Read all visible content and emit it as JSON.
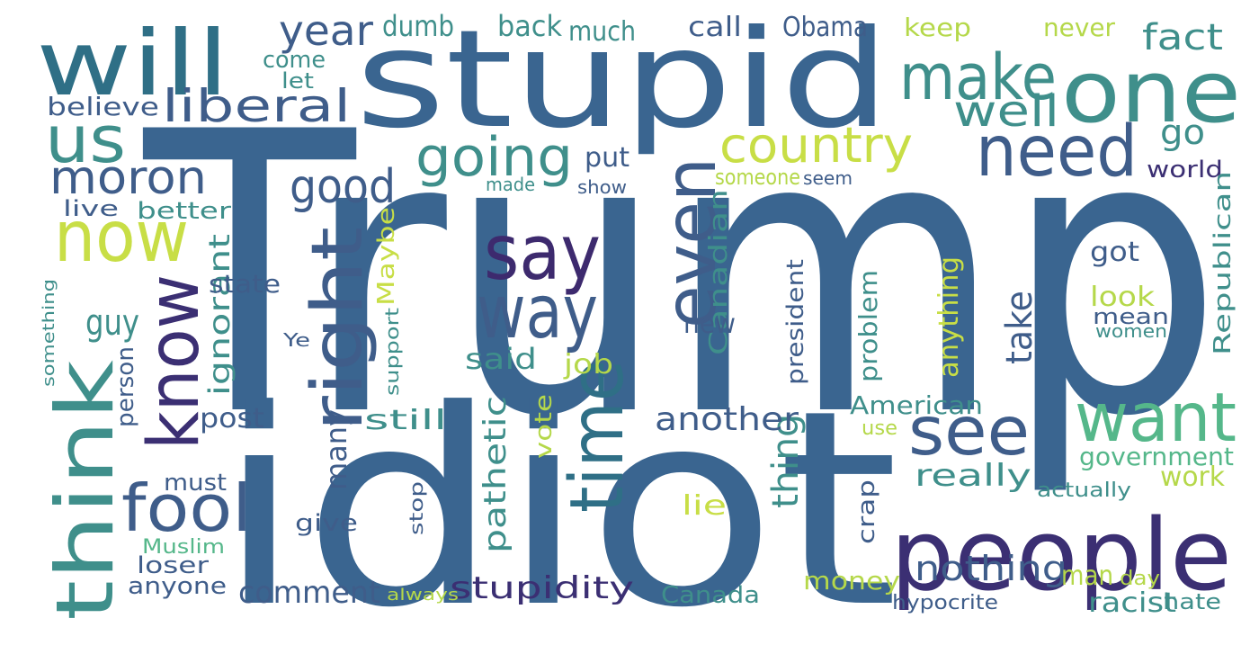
{
  "palette": {
    "blue": "#3a6590",
    "slate": "#3f5d8a",
    "navy": "#3b2f73",
    "purple": "#3d2a6e",
    "teal": "#3f8f8b",
    "tealdark": "#2f6f86",
    "green": "#55b78a",
    "lightgreen": "#79c57a",
    "lime": "#c8de46",
    "yellowgreen": "#b5d84a"
  },
  "words": [
    {
      "text": "Trump",
      "color": "blue"
    },
    {
      "text": "idiot",
      "color": "blue"
    },
    {
      "text": "stupid",
      "color": "blue"
    },
    {
      "text": "people",
      "color": "navy"
    },
    {
      "text": "will",
      "color": "tealdark"
    },
    {
      "text": "one",
      "color": "teal"
    },
    {
      "text": "make",
      "color": "teal"
    },
    {
      "text": "us",
      "color": "teal"
    },
    {
      "text": "need",
      "color": "slate"
    },
    {
      "text": "now",
      "color": "lime"
    },
    {
      "text": "think",
      "color": "teal"
    },
    {
      "text": "know",
      "color": "navy"
    },
    {
      "text": "right",
      "color": "slate"
    },
    {
      "text": "say",
      "color": "purple"
    },
    {
      "text": "way",
      "color": "slate"
    },
    {
      "text": "even",
      "color": "slate"
    },
    {
      "text": "time",
      "color": "tealdark"
    },
    {
      "text": "want",
      "color": "green"
    },
    {
      "text": "see",
      "color": "slate"
    },
    {
      "text": "fool",
      "color": "slate"
    },
    {
      "text": "country",
      "color": "lime"
    },
    {
      "text": "going",
      "color": "teal"
    },
    {
      "text": "good",
      "color": "slate"
    },
    {
      "text": "moron",
      "color": "slate"
    },
    {
      "text": "liberal",
      "color": "slate"
    },
    {
      "text": "well",
      "color": "teal"
    },
    {
      "text": "year",
      "color": "slate"
    },
    {
      "text": "fact",
      "color": "teal"
    },
    {
      "text": "go",
      "color": "teal"
    },
    {
      "text": "dumb",
      "color": "teal"
    },
    {
      "text": "back",
      "color": "teal"
    },
    {
      "text": "much",
      "color": "teal"
    },
    {
      "text": "call",
      "color": "slate"
    },
    {
      "text": "Obama",
      "color": "slate"
    },
    {
      "text": "keep",
      "color": "yellowgreen"
    },
    {
      "text": "never",
      "color": "yellowgreen"
    },
    {
      "text": "come",
      "color": "teal"
    },
    {
      "text": "let",
      "color": "teal"
    },
    {
      "text": "believe",
      "color": "slate"
    },
    {
      "text": "put",
      "color": "slate"
    },
    {
      "text": "someone",
      "color": "yellowgreen"
    },
    {
      "text": "seem",
      "color": "slate"
    },
    {
      "text": "world",
      "color": "navy"
    },
    {
      "text": "made",
      "color": "teal"
    },
    {
      "text": "show",
      "color": "slate"
    },
    {
      "text": "live",
      "color": "slate"
    },
    {
      "text": "better",
      "color": "teal"
    },
    {
      "text": "ignorant",
      "color": "teal"
    },
    {
      "text": "Maybe",
      "color": "lime"
    },
    {
      "text": "Canadian",
      "color": "teal"
    },
    {
      "text": "Republican",
      "color": "teal"
    },
    {
      "text": "state",
      "color": "slate"
    },
    {
      "text": "guy",
      "color": "teal"
    },
    {
      "text": "got",
      "color": "slate"
    },
    {
      "text": "look",
      "color": "yellowgreen"
    },
    {
      "text": "something",
      "color": "teal"
    },
    {
      "text": "Ye",
      "color": "slate"
    },
    {
      "text": "new",
      "color": "slate"
    },
    {
      "text": "president",
      "color": "slate"
    },
    {
      "text": "problem",
      "color": "teal"
    },
    {
      "text": "anything",
      "color": "lime"
    },
    {
      "text": "mean",
      "color": "slate"
    },
    {
      "text": "women",
      "color": "teal"
    },
    {
      "text": "person",
      "color": "slate"
    },
    {
      "text": "support",
      "color": "teal"
    },
    {
      "text": "said",
      "color": "teal"
    },
    {
      "text": "job",
      "color": "yellowgreen"
    },
    {
      "text": "take",
      "color": "slate"
    },
    {
      "text": "pathetic",
      "color": "teal"
    },
    {
      "text": "vote",
      "color": "yellowgreen"
    },
    {
      "text": "thing",
      "color": "teal"
    },
    {
      "text": "post",
      "color": "slate"
    },
    {
      "text": "still",
      "color": "teal"
    },
    {
      "text": "another",
      "color": "slate"
    },
    {
      "text": "American",
      "color": "teal"
    },
    {
      "text": "use",
      "color": "yellowgreen"
    },
    {
      "text": "government",
      "color": "green"
    },
    {
      "text": "many",
      "color": "slate"
    },
    {
      "text": "really",
      "color": "teal"
    },
    {
      "text": "work",
      "color": "yellowgreen"
    },
    {
      "text": "must",
      "color": "slate"
    },
    {
      "text": "stop",
      "color": "slate"
    },
    {
      "text": "actually",
      "color": "teal"
    },
    {
      "text": "give",
      "color": "slate"
    },
    {
      "text": "crap",
      "color": "slate"
    },
    {
      "text": "lie",
      "color": "lime"
    },
    {
      "text": "Muslim",
      "color": "green"
    },
    {
      "text": "loser",
      "color": "slate"
    },
    {
      "text": "nothing",
      "color": "slate"
    },
    {
      "text": "man",
      "color": "yellowgreen"
    },
    {
      "text": "day",
      "color": "yellowgreen"
    },
    {
      "text": "anyone",
      "color": "slate"
    },
    {
      "text": "comment",
      "color": "slate"
    },
    {
      "text": "stupidity",
      "color": "navy"
    },
    {
      "text": "money",
      "color": "yellowgreen"
    },
    {
      "text": "Canada",
      "color": "teal"
    },
    {
      "text": "racist",
      "color": "teal"
    },
    {
      "text": "always",
      "color": "yellowgreen"
    },
    {
      "text": "hypocrite",
      "color": "slate"
    },
    {
      "text": "hate",
      "color": "teal"
    }
  ]
}
